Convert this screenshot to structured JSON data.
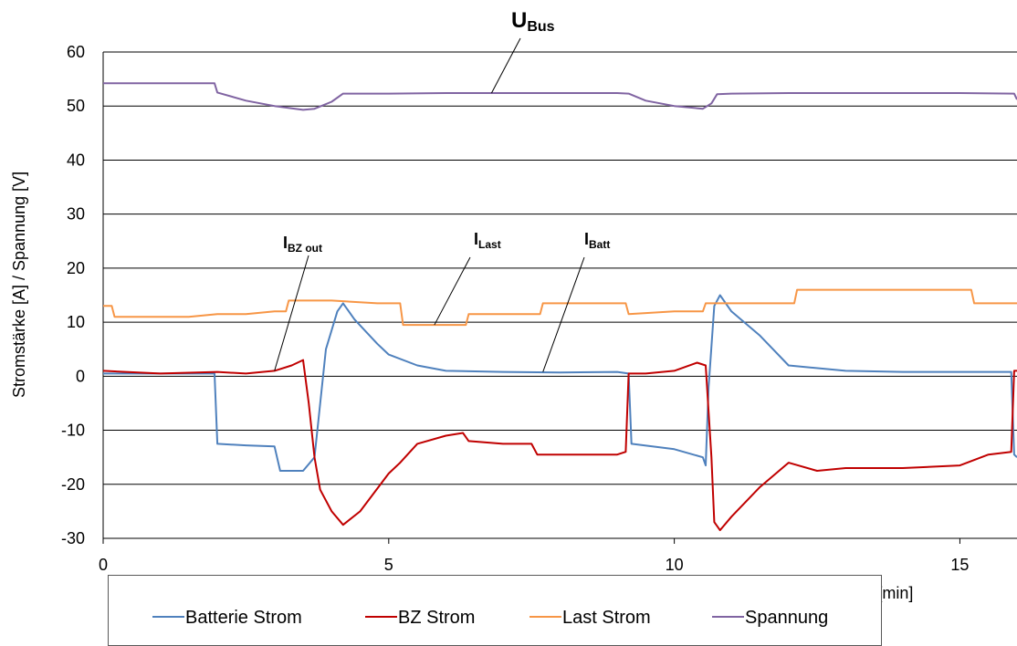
{
  "chart_data": {
    "type": "line",
    "xlabel": "Time [min]",
    "ylabel": "Stromstärke [A] / Spannung [V]",
    "xlim": [
      0,
      16
    ],
    "ylim": [
      -30,
      60
    ],
    "x_ticks": [
      0,
      5,
      10,
      15
    ],
    "y_ticks": [
      60,
      50,
      40,
      30,
      20,
      10,
      0,
      -10,
      -20,
      -30
    ],
    "grid": "horizontal",
    "legend": {
      "placement": "bottom"
    },
    "series": [
      {
        "name": "Batterie Strom",
        "color": "#4f81bd",
        "x": [
          0,
          1.95,
          2.0,
          2.5,
          3.0,
          3.1,
          3.5,
          3.7,
          3.9,
          4.1,
          4.2,
          4.4,
          4.8,
          5.0,
          5.5,
          6.0,
          7.0,
          8.0,
          9.0,
          9.2,
          9.25,
          10.0,
          10.5,
          10.55,
          10.6,
          10.7,
          10.8,
          11.0,
          11.5,
          12.0,
          13.0,
          14.0,
          15.0,
          15.9,
          15.95,
          16.0
        ],
        "values": [
          0.5,
          0.5,
          -12.5,
          -12.8,
          -13.0,
          -17.5,
          -17.5,
          -15.0,
          5.0,
          12.0,
          13.5,
          10.5,
          6.0,
          4.0,
          2.0,
          1.0,
          0.8,
          0.7,
          0.8,
          0.5,
          -12.5,
          -13.5,
          -15.0,
          -16.5,
          -2.0,
          13.0,
          15.0,
          12.0,
          7.5,
          2.0,
          1.0,
          0.8,
          0.8,
          0.8,
          -14.5,
          -15.0
        ]
      },
      {
        "name": "BZ Strom",
        "color": "#c00000",
        "x": [
          0,
          1.0,
          2.0,
          2.5,
          3.0,
          3.3,
          3.5,
          3.6,
          3.7,
          3.8,
          4.0,
          4.2,
          4.5,
          5.0,
          5.2,
          5.5,
          6.0,
          6.3,
          6.4,
          7.0,
          7.5,
          7.6,
          8.0,
          9.0,
          9.15,
          9.2,
          9.5,
          10.0,
          10.4,
          10.55,
          10.65,
          10.7,
          10.8,
          11.0,
          11.5,
          12.0,
          12.5,
          13.0,
          14.0,
          15.0,
          15.5,
          15.9,
          15.95,
          16.0
        ],
        "values": [
          1.0,
          0.5,
          0.8,
          0.5,
          1.0,
          2.0,
          3.0,
          -5.0,
          -15.0,
          -21.0,
          -25.0,
          -27.5,
          -25.0,
          -18.0,
          -16.0,
          -12.5,
          -11.0,
          -10.5,
          -12.0,
          -12.5,
          -12.5,
          -14.5,
          -14.5,
          -14.5,
          -14.0,
          0.5,
          0.5,
          1.0,
          2.5,
          2.0,
          -15.0,
          -27.0,
          -28.5,
          -26.0,
          -20.5,
          -16.0,
          -17.5,
          -17.0,
          -17.0,
          -16.5,
          -14.5,
          -14.0,
          1.0,
          1.0
        ]
      },
      {
        "name": "Last Strom",
        "color": "#f79646",
        "x": [
          0,
          0.15,
          0.2,
          1.5,
          2.0,
          2.5,
          3.0,
          3.2,
          3.25,
          4.0,
          4.8,
          5.2,
          5.25,
          6.0,
          6.35,
          6.4,
          7.5,
          7.65,
          7.7,
          9.15,
          9.2,
          10.0,
          10.5,
          10.55,
          11.0,
          12.0,
          12.1,
          12.15,
          14.0,
          15.0,
          15.2,
          15.25,
          16.0
        ],
        "values": [
          13.0,
          13.0,
          11.0,
          11.0,
          11.5,
          11.5,
          12.0,
          12.0,
          14.0,
          14.0,
          13.5,
          13.5,
          9.5,
          9.5,
          9.5,
          11.5,
          11.5,
          11.5,
          13.5,
          13.5,
          11.5,
          12.0,
          12.0,
          13.5,
          13.5,
          13.5,
          13.5,
          16.0,
          16.0,
          16.0,
          16.0,
          13.5,
          13.5
        ]
      },
      {
        "name": "Spannung",
        "color": "#8064a2",
        "x": [
          0,
          1.95,
          2.0,
          2.5,
          3.0,
          3.5,
          3.7,
          4.0,
          4.2,
          5.0,
          6.0,
          7.0,
          8.0,
          9.0,
          9.2,
          9.5,
          10.0,
          10.5,
          10.65,
          10.75,
          11.0,
          12.0,
          13.0,
          14.0,
          15.0,
          15.95,
          16.0
        ],
        "values": [
          54.2,
          54.2,
          52.5,
          51.0,
          50.0,
          49.3,
          49.5,
          50.8,
          52.3,
          52.3,
          52.4,
          52.4,
          52.4,
          52.4,
          52.3,
          51.0,
          50.0,
          49.5,
          50.5,
          52.2,
          52.3,
          52.4,
          52.4,
          52.4,
          52.4,
          52.3,
          51.2
        ]
      }
    ],
    "annotations": [
      {
        "main": "U",
        "sub": "Bus",
        "x": 6.8,
        "y": 52.4
      },
      {
        "main": "I",
        "sub": "BZ out",
        "x": 3.0,
        "y": 1.0
      },
      {
        "main": "I",
        "sub": "Last",
        "x": 5.8,
        "y": 9.5
      },
      {
        "main": "I",
        "sub": "Batt",
        "x": 7.7,
        "y": 0.8
      }
    ]
  }
}
